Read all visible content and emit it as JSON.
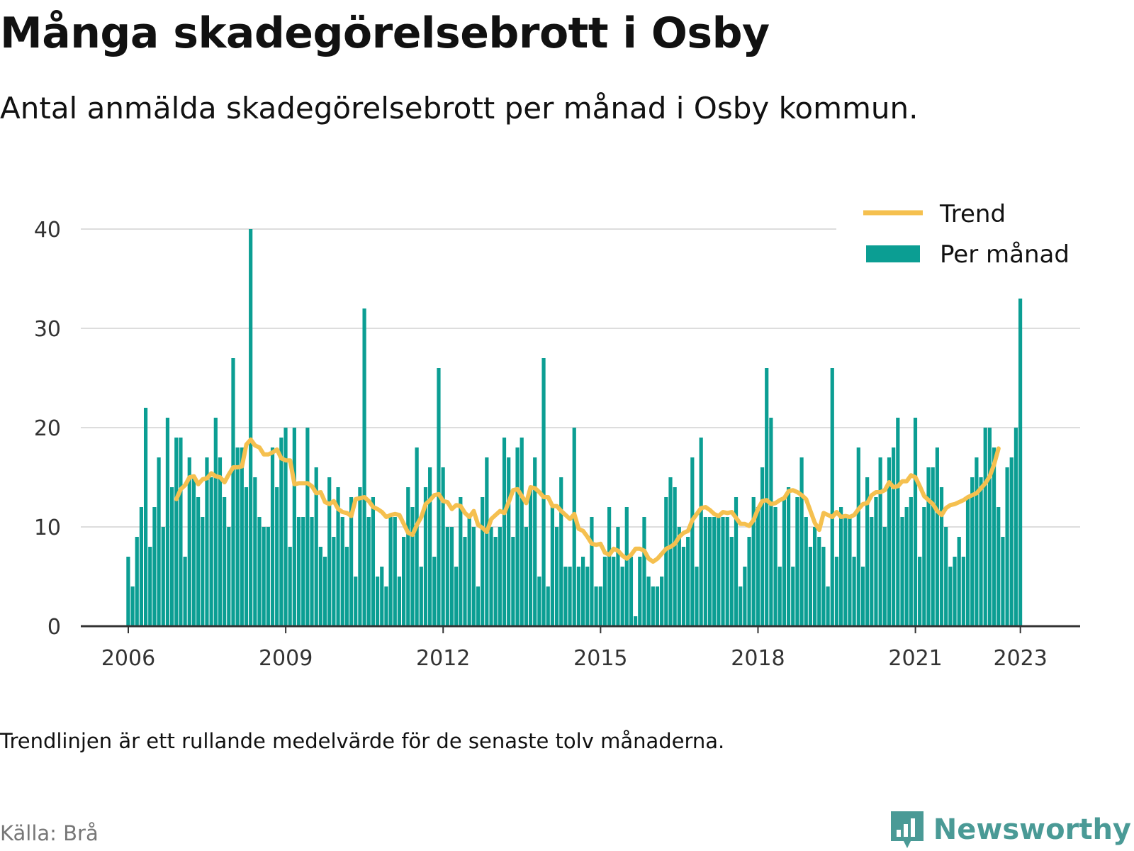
{
  "title": "Många skadegörelsebrott i Osby",
  "subtitle": "Antal anmälda skadegörelsebrott per månad i Osby kommun.",
  "note": "Trendlinjen är ett rullande medelvärde för de senaste tolv månaderna.",
  "source": "Källa: Brå",
  "brand": "Newsworthy",
  "colors": {
    "bar": "#0b9e93",
    "trend": "#f5c04f",
    "grid": "#dddddd",
    "axis": "#333333",
    "brand": "#4a9a96"
  },
  "chart_data": {
    "type": "bar",
    "start": "2006-01",
    "x_tick_labels": [
      "2006",
      "2009",
      "2012",
      "2015",
      "2018",
      "2021",
      "2023"
    ],
    "y_tick_labels": [
      "0",
      "10",
      "20",
      "30",
      "40"
    ],
    "ylim": [
      0,
      40
    ],
    "grid": true,
    "legend": {
      "position": "top-right",
      "items": [
        "Trend",
        "Per månad"
      ]
    },
    "series": [
      {
        "name": "Per månad",
        "type": "bar",
        "values": [
          7,
          4,
          9,
          12,
          22,
          8,
          12,
          17,
          10,
          21,
          14,
          19,
          19,
          7,
          17,
          15,
          13,
          11,
          17,
          15,
          21,
          17,
          13,
          10,
          27,
          18,
          18,
          14,
          40,
          15,
          11,
          10,
          10,
          18,
          14,
          19,
          20,
          8,
          20,
          11,
          11,
          20,
          11,
          16,
          8,
          7,
          15,
          9,
          14,
          11,
          8,
          13,
          5,
          14,
          32,
          11,
          13,
          5,
          6,
          4,
          11,
          11,
          5,
          9,
          14,
          12,
          18,
          6,
          14,
          16,
          7,
          26,
          16,
          10,
          10,
          6,
          13,
          9,
          11,
          10,
          4,
          13,
          17,
          10,
          9,
          10,
          19,
          17,
          9,
          18,
          19,
          10,
          14,
          17,
          5,
          27,
          4,
          12,
          10,
          15,
          6,
          6,
          20,
          6,
          7,
          6,
          11,
          4,
          4,
          7,
          12,
          7,
          10,
          6,
          12,
          7,
          1,
          7,
          11,
          5,
          4,
          4,
          5,
          13,
          15,
          14,
          10,
          8,
          9,
          17,
          6,
          19,
          11,
          11,
          11,
          11,
          11,
          11,
          9,
          13,
          4,
          6,
          9,
          13,
          12,
          16,
          26,
          21,
          12,
          6,
          13,
          14,
          6,
          13,
          17,
          11,
          8,
          10,
          9,
          8,
          4,
          26,
          7,
          12,
          11,
          11,
          7,
          18,
          6,
          15,
          11,
          13,
          17,
          10,
          17,
          18,
          21,
          11,
          12,
          13,
          21,
          7,
          12,
          16,
          16,
          18,
          14,
          10,
          6,
          7,
          9,
          7,
          13,
          15,
          17,
          15,
          20,
          20,
          18,
          12,
          9,
          16,
          17,
          20,
          33
        ]
      },
      {
        "name": "Trend",
        "type": "line",
        "start_index": 11,
        "values": [
          12.8,
          13.8,
          14.2,
          15.0,
          15.1,
          14.3,
          14.8,
          14.9,
          15.4,
          15.1,
          15.0,
          14.5,
          15.3,
          16.0,
          16.0,
          16.1,
          18.3,
          18.8,
          18.2,
          18.0,
          17.3,
          17.3,
          17.5,
          17.8,
          16.9,
          16.7,
          16.7,
          14.3,
          14.4,
          14.4,
          14.4,
          14.1,
          13.4,
          13.5,
          12.5,
          12.3,
          12.6,
          11.8,
          11.5,
          11.4,
          11.1,
          12.8,
          12.9,
          13.0,
          12.6,
          12.0,
          11.8,
          11.5,
          11.0,
          11.2,
          11.3,
          11.2,
          10.3,
          9.4,
          9.2,
          10.2,
          11.0,
          12.3,
          12.7,
          13.2,
          13.3,
          12.6,
          12.5,
          11.8,
          12.2,
          12.1,
          11.4,
          11.0,
          11.6,
          10.2,
          9.9,
          9.5,
          10.8,
          11.2,
          11.6,
          11.4,
          12.5,
          13.7,
          13.8,
          13.1,
          12.4,
          14.0,
          13.9,
          13.5,
          13.0,
          13.0,
          12.1,
          12.1,
          11.6,
          11.2,
          10.8,
          11.3,
          9.8,
          9.6,
          9.0,
          8.3,
          8.2,
          8.3,
          7.4,
          7.2,
          7.8,
          7.6,
          7.1,
          6.8,
          7.2,
          7.8,
          7.8,
          7.6,
          6.8,
          6.5,
          6.8,
          7.3,
          7.8,
          8.0,
          8.3,
          9.0,
          9.4,
          9.6,
          10.7,
          11.3,
          11.9,
          12.0,
          11.7,
          11.3,
          11.1,
          11.5,
          11.4,
          11.5,
          10.9,
          10.3,
          10.3,
          10.1,
          10.7,
          11.8,
          12.6,
          12.7,
          12.3,
          12.4,
          12.7,
          12.9,
          13.6,
          13.7,
          13.5,
          13.2,
          12.8,
          11.6,
          10.4,
          9.7,
          11.4,
          11.2,
          11.0,
          11.5,
          11.0,
          11.1,
          11.0,
          11.2,
          11.8,
          12.3,
          12.4,
          13.2,
          13.5,
          13.5,
          13.7,
          14.5,
          14.0,
          14.1,
          14.6,
          14.6,
          15.2,
          15.0,
          14.1,
          13.1,
          12.7,
          12.3,
          11.6,
          11.2,
          11.9,
          12.2,
          12.3,
          12.5,
          12.7,
          13.0,
          13.2,
          13.4,
          13.9,
          14.4,
          15.1,
          16.3,
          17.9
        ]
      }
    ]
  }
}
